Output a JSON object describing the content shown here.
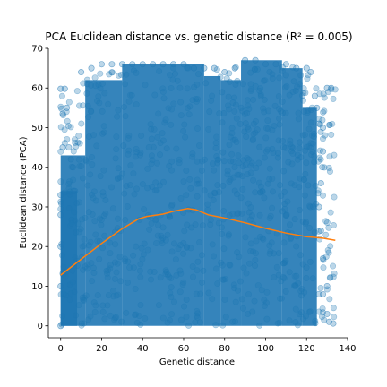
{
  "chart_data": {
    "type": "scatter",
    "title": "PCA Euclidean distance vs. genetic distance (R² = 0.005)",
    "xlabel": "Genetic distance",
    "ylabel": "Euclidean distance (PCA)",
    "xlim": [
      -6,
      140
    ],
    "ylim": [
      -3,
      70
    ],
    "xticks": [
      0,
      20,
      40,
      60,
      80,
      100,
      120,
      140
    ],
    "yticks": [
      0,
      10,
      20,
      30,
      40,
      50,
      60,
      70
    ],
    "grid": false,
    "colors": {
      "scatter": "#1f77b4",
      "trend": "#ff7f0e"
    },
    "series": [
      {
        "type": "scatter",
        "description_of_distribution": "dense cloud of semi-transparent points covering x 0-133 and y 0-67",
        "points": [
          [
            0,
            59.8
          ],
          [
            1,
            53.5
          ],
          [
            2,
            59.8
          ],
          [
            3,
            55
          ],
          [
            4,
            45
          ],
          [
            5,
            42
          ],
          [
            6,
            40
          ],
          [
            7,
            34
          ],
          [
            10,
            64
          ],
          [
            13,
            61
          ],
          [
            15,
            65
          ],
          [
            20,
            66
          ],
          [
            25,
            66
          ],
          [
            30,
            66
          ],
          [
            35,
            66
          ],
          [
            40,
            66
          ],
          [
            45,
            66
          ],
          [
            50,
            66
          ],
          [
            55,
            66
          ],
          [
            60,
            66
          ],
          [
            65,
            65
          ],
          [
            70,
            65
          ],
          [
            75,
            65
          ],
          [
            80,
            64
          ],
          [
            85,
            65
          ],
          [
            90,
            67
          ],
          [
            95,
            67
          ],
          [
            100,
            66
          ],
          [
            105,
            66
          ],
          [
            110,
            66
          ],
          [
            115,
            65
          ],
          [
            120,
            65
          ],
          [
            122,
            64
          ],
          [
            124,
            58
          ],
          [
            125,
            55
          ],
          [
            126,
            51
          ],
          [
            128,
            50
          ],
          [
            130,
            60
          ],
          [
            132,
            60
          ],
          [
            128,
            44
          ],
          [
            127,
            36
          ],
          [
            126,
            30
          ],
          [
            127,
            24
          ],
          [
            128,
            17
          ],
          [
            130,
            10
          ],
          [
            126,
            8
          ],
          [
            130,
            3
          ],
          [
            133,
            0.6
          ],
          [
            0,
            0
          ],
          [
            0,
            10
          ],
          [
            0,
            20
          ],
          [
            0,
            28
          ],
          [
            0,
            33
          ],
          [
            1,
            45
          ],
          [
            123,
            46
          ],
          [
            128,
            8
          ],
          [
            131,
            1
          ]
        ]
      },
      {
        "type": "line",
        "description_of_line": "trend line",
        "x": [
          0,
          10,
          20,
          30,
          38,
          42,
          50,
          55,
          62,
          66,
          72,
          80,
          90,
          100,
          110,
          120,
          128,
          134
        ],
        "y": [
          12.8,
          16.8,
          20.8,
          24.5,
          27,
          27.6,
          28.2,
          28.9,
          29.6,
          29.3,
          28,
          27.2,
          26,
          24.6,
          23.4,
          22.5,
          22.1,
          21.6
        ]
      }
    ]
  }
}
